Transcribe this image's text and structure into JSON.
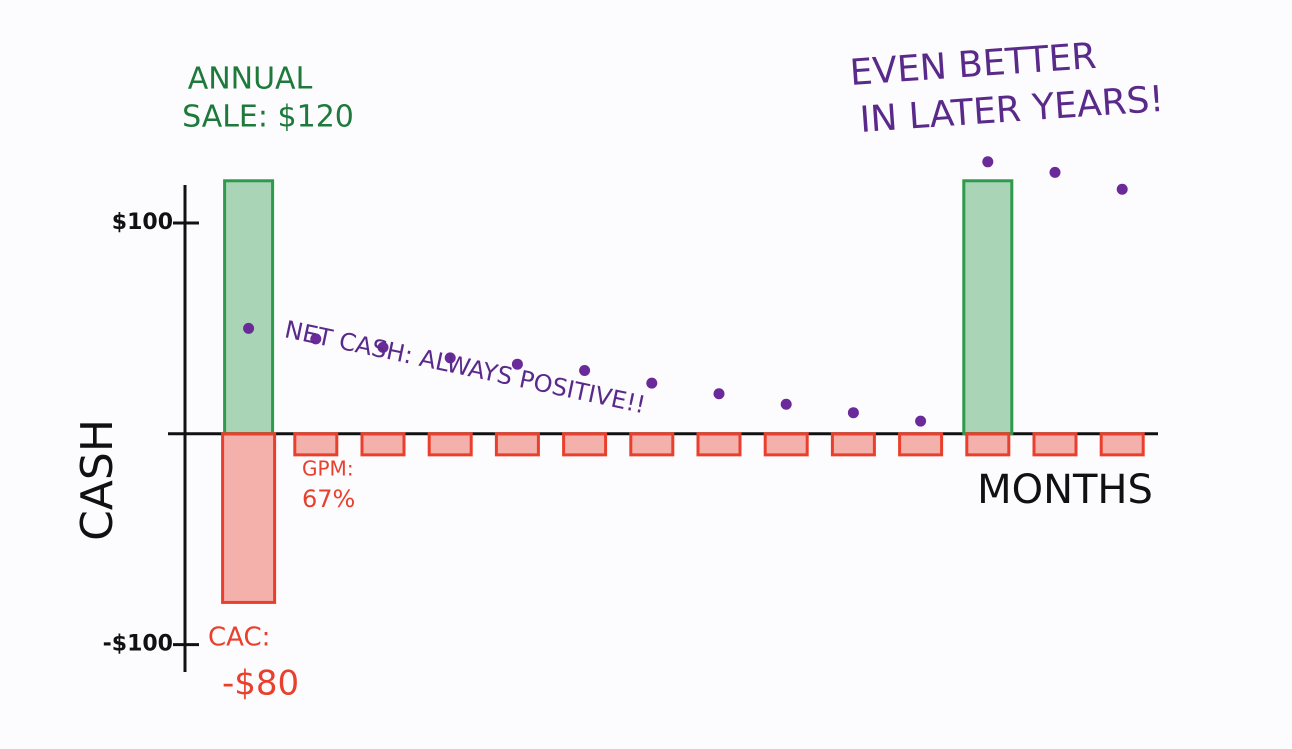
{
  "chart_data": {
    "type": "bar",
    "x_label": "MONTHS",
    "y_label": "CASH",
    "categories": [
      null,
      null,
      null,
      null,
      null,
      null,
      null,
      null,
      null,
      null,
      null,
      null,
      null,
      null
    ],
    "series": [
      {
        "type": "bar",
        "color": "#2e9a4c",
        "values": [
          120,
          null,
          null,
          null,
          null,
          null,
          null,
          null,
          null,
          null,
          null,
          120,
          null,
          null
        ]
      },
      {
        "type": "bar",
        "color": "#e8402c",
        "values": [
          -80,
          -10,
          -10,
          -10,
          -10,
          -10,
          -10,
          -10,
          -10,
          -10,
          -10,
          -10,
          -10,
          -10
        ]
      },
      {
        "type": "scatter",
        "color": "#6a2a9a",
        "values": [
          50,
          45,
          41,
          36,
          33,
          30,
          24,
          19,
          14,
          10,
          6,
          129,
          124,
          116
        ]
      }
    ],
    "ylim": [
      -113,
      118
    ],
    "yticks": [
      {
        "value": 100,
        "label": "$100"
      },
      {
        "value": -100,
        "label": "-$100"
      }
    ],
    "annotations": [
      {
        "text": "ANNUAL",
        "color": "#1e7a3a"
      },
      {
        "text": "SALE: $120",
        "color": "#1e7a3a"
      },
      {
        "text": "NET CASH: ALWAYS POSITIVE!!",
        "color": "#5a2a8a"
      },
      {
        "text": "GPM:",
        "color": "#e8402c"
      },
      {
        "text": "67%",
        "color": "#e8402c"
      },
      {
        "text": "CAC:",
        "color": "#e8402c"
      },
      {
        "text": "-$80",
        "color": "#e8402c"
      },
      {
        "text": "EVEN BETTER",
        "color": "#5a2a8a"
      },
      {
        "text": "IN LATER YEARS!",
        "color": "#5a2a8a"
      }
    ]
  }
}
